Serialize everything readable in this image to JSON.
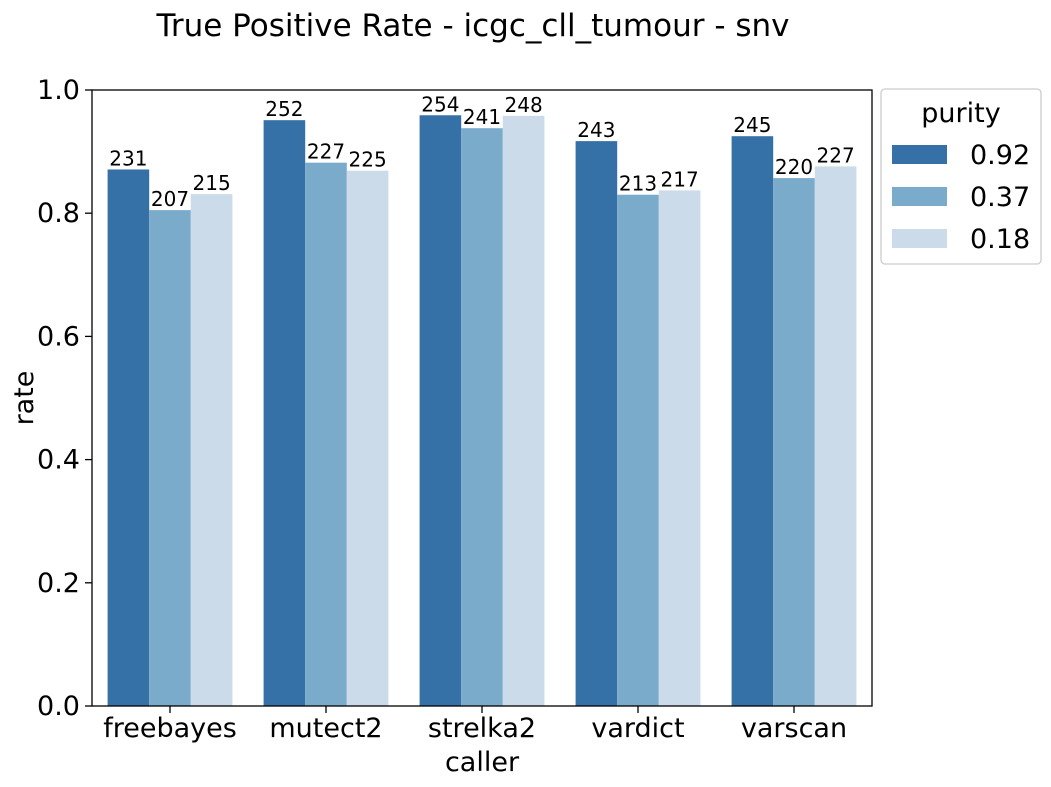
{
  "chart_data": {
    "type": "bar",
    "title": "True Positive Rate - icgc_cll_tumour - snv",
    "xlabel": "caller",
    "ylabel": "rate",
    "ylim": [
      0,
      1.0
    ],
    "yticks": [
      "0.0",
      "0.2",
      "0.4",
      "0.6",
      "0.8",
      "1.0"
    ],
    "categories": [
      "freebayes",
      "mutect2",
      "strelka2",
      "vardict",
      "varscan"
    ],
    "legend": {
      "title": "purity",
      "placement": "outside-top-right"
    },
    "series": [
      {
        "name": "0.92",
        "color": "#3571a6",
        "values": [
          0.871,
          0.951,
          0.959,
          0.917,
          0.925
        ],
        "labels": [
          "231",
          "252",
          "254",
          "243",
          "245"
        ]
      },
      {
        "name": "0.37",
        "color": "#7aabcb",
        "values": [
          0.805,
          0.882,
          0.938,
          0.83,
          0.857
        ],
        "labels": [
          "207",
          "227",
          "241",
          "213",
          "220"
        ]
      },
      {
        "name": "0.18",
        "color": "#cbdbea",
        "values": [
          0.831,
          0.869,
          0.958,
          0.837,
          0.876
        ],
        "labels": [
          "215",
          "225",
          "248",
          "217",
          "227"
        ]
      }
    ],
    "grid": false
  }
}
